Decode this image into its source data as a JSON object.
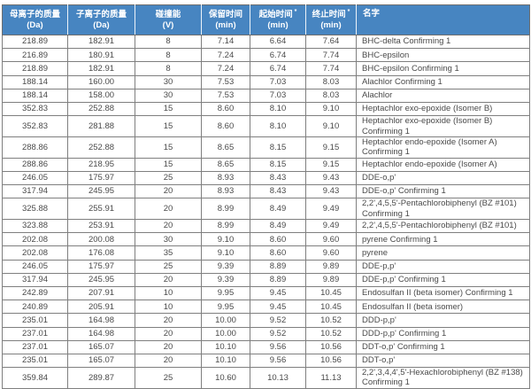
{
  "colors": {
    "header_bg": "#4785c1",
    "header_text": "#ffffff",
    "row_bg": "#ffffff",
    "cell_text": "#4a4a4a",
    "grid_line": "#7f7f7f"
  },
  "chart_data": {
    "type": "table",
    "title": "",
    "columns": [
      {
        "key": "parent_mass",
        "title": "母离子的质量",
        "unit": "(Da)",
        "asterisk": false
      },
      {
        "key": "product_mass",
        "title": "子离子的质量",
        "unit": "(Da)",
        "asterisk": false
      },
      {
        "key": "collision_energy",
        "title": "碰撞能",
        "unit": "(V)",
        "asterisk": false
      },
      {
        "key": "retention_time",
        "title": "保留时间",
        "unit": "(min)",
        "asterisk": false
      },
      {
        "key": "start_time",
        "title": "起始时间",
        "unit": "(min)",
        "asterisk": true
      },
      {
        "key": "end_time",
        "title": "终止时间",
        "unit": "(min)",
        "asterisk": true
      },
      {
        "key": "name",
        "title": "名字",
        "unit": "",
        "asterisk": false
      }
    ],
    "rows": [
      [
        "218.89",
        "182.91",
        "8",
        "7.14",
        "6.64",
        "7.64",
        "BHC-delta Confirming 1"
      ],
      [
        "216.89",
        "180.91",
        "8",
        "7.24",
        "6.74",
        "7.74",
        "BHC-epsilon"
      ],
      [
        "218.89",
        "182.91",
        "8",
        "7.24",
        "6.74",
        "7.74",
        "BHC-epsilon Confirming 1"
      ],
      [
        "188.14",
        "160.00",
        "30",
        "7.53",
        "7.03",
        "8.03",
        "Alachlor Confirming 1"
      ],
      [
        "188.14",
        "158.00",
        "30",
        "7.53",
        "7.03",
        "8.03",
        "Alachlor"
      ],
      [
        "352.83",
        "252.88",
        "15",
        "8.60",
        "8.10",
        "9.10",
        "Heptachlor exo-epoxide (Isomer B)"
      ],
      [
        "352.83",
        "281.88",
        "15",
        "8.60",
        "8.10",
        "9.10",
        "Heptachlor exo-epoxide (Isomer B) Confirming 1"
      ],
      [
        "288.86",
        "252.88",
        "15",
        "8.65",
        "8.15",
        "9.15",
        "Heptachlor endo-epoxide (Isomer A) Confirming 1"
      ],
      [
        "288.86",
        "218.95",
        "15",
        "8.65",
        "8.15",
        "9.15",
        "Heptachlor endo-epoxide (Isomer A)"
      ],
      [
        "246.05",
        "175.97",
        "25",
        "8.93",
        "8.43",
        "9.43",
        "DDE-o,p'"
      ],
      [
        "317.94",
        "245.95",
        "20",
        "8.93",
        "8.43",
        "9.43",
        "DDE-o,p' Confirming 1"
      ],
      [
        "325.88",
        "255.91",
        "20",
        "8.99",
        "8.49",
        "9.49",
        "2,2',4,5,5'-Pentachlorobiphenyl (BZ #101) Confirming 1"
      ],
      [
        "323.88",
        "253.91",
        "20",
        "8.99",
        "8.49",
        "9.49",
        "2,2',4,5,5'-Pentachlorobiphenyl (BZ #101)"
      ],
      [
        "202.08",
        "200.08",
        "30",
        "9.10",
        "8.60",
        "9.60",
        "pyrene Confirming 1"
      ],
      [
        "202.08",
        "176.08",
        "35",
        "9.10",
        "8.60",
        "9.60",
        "pyrene"
      ],
      [
        "246.05",
        "175.97",
        "25",
        "9.39",
        "8.89",
        "9.89",
        "DDE-p,p'"
      ],
      [
        "317.94",
        "245.95",
        "20",
        "9.39",
        "8.89",
        "9.89",
        "DDE-p,p' Confirming 1"
      ],
      [
        "242.89",
        "207.91",
        "10",
        "9.95",
        "9.45",
        "10.45",
        "Endosulfan II (beta isomer) Confirming 1"
      ],
      [
        "240.89",
        "205.91",
        "10",
        "9.95",
        "9.45",
        "10.45",
        "Endosulfan II (beta isomer)"
      ],
      [
        "235.01",
        "164.98",
        "20",
        "10.00",
        "9.52",
        "10.52",
        "DDD-p,p'"
      ],
      [
        "237.01",
        "164.98",
        "20",
        "10.00",
        "9.52",
        "10.52",
        "DDD-p,p' Confirming 1"
      ],
      [
        "237.01",
        "165.07",
        "20",
        "10.10",
        "9.56",
        "10.56",
        "DDT-o,p' Confirming 1"
      ],
      [
        "235.01",
        "165.07",
        "20",
        "10.10",
        "9.56",
        "10.56",
        "DDT-o,p'"
      ],
      [
        "359.84",
        "289.87",
        "25",
        "10.60",
        "10.13",
        "11.13",
        "2,2',3,4,4',5'-Hexachlorobiphenyl (BZ #138) Confirming 1"
      ]
    ]
  }
}
